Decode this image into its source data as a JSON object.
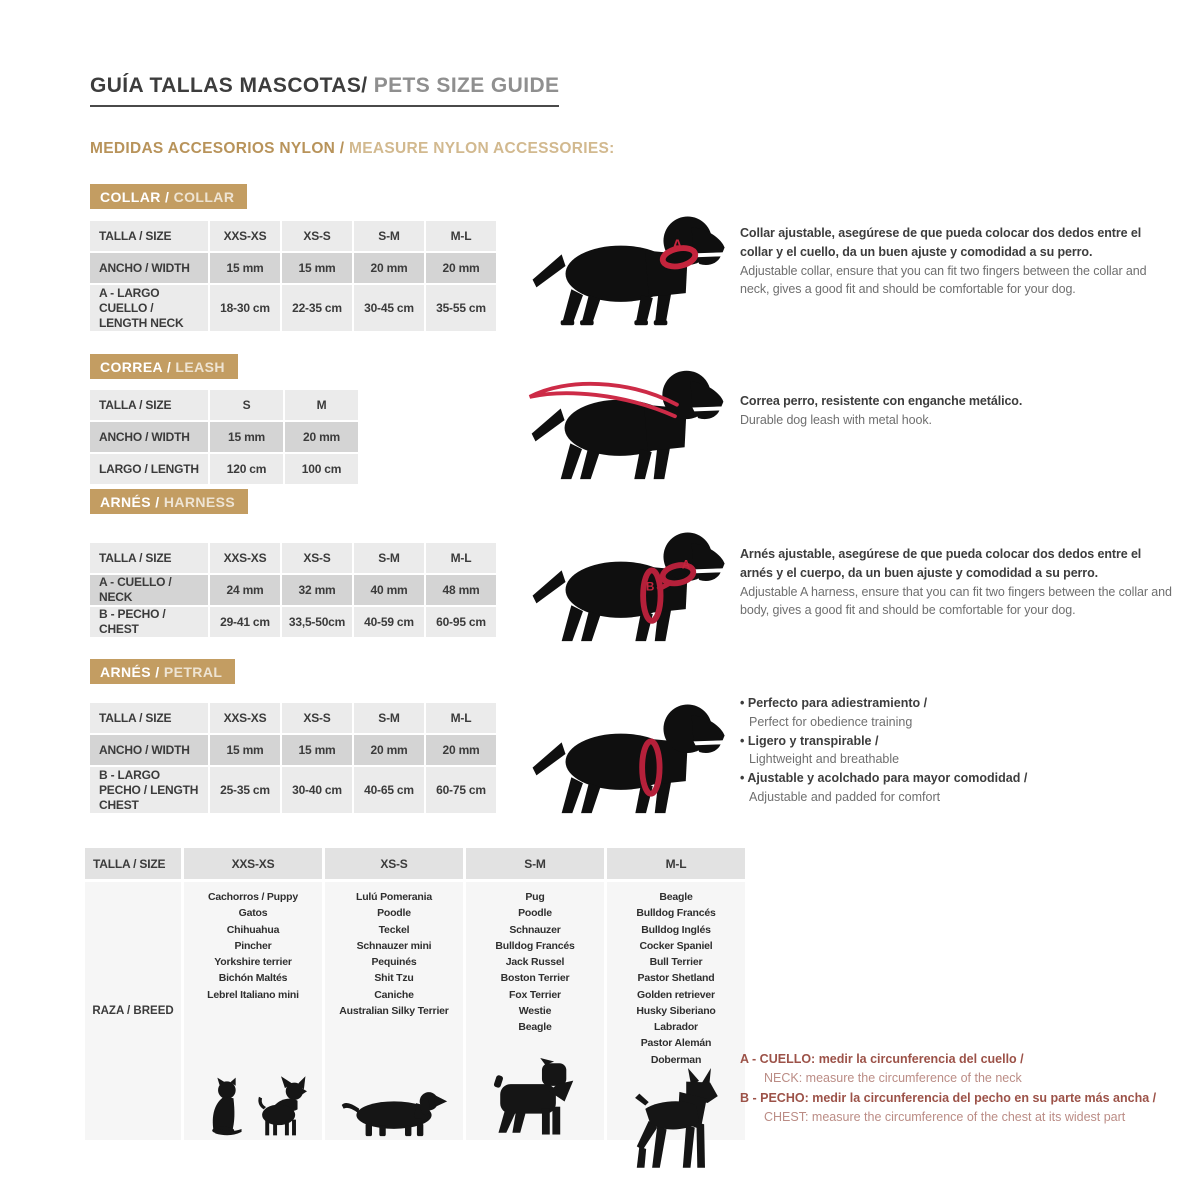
{
  "page": {
    "title_es": "GUÍA TALLAS MASCOTAS/",
    "title_en": " PETS SIZE GUIDE",
    "subtitle_es": "MEDIDAS ACCESORIOS NYLON /",
    "subtitle_en": " MEASURE NYLON ACCESSORIES:"
  },
  "colors": {
    "accent_tan": "#c39d62",
    "row_light": "#ebebeb",
    "row_dark": "#d4d4d4",
    "red_accent": "#c4243c",
    "note_red": "#9c5248"
  },
  "sections": {
    "collar": {
      "badge_es": "COLLAR /",
      "badge_en": " COLLAR",
      "header": [
        "TALLA / SIZE",
        "XXS-XS",
        "XS-S",
        "S-M",
        "M-L"
      ],
      "row1_label": "ANCHO / WIDTH",
      "row1": [
        "15 mm",
        "15 mm",
        "20 mm",
        "20 mm"
      ],
      "row2_label": "A - LARGO CUELLO / LENGTH NECK",
      "row2": [
        "18-30 cm",
        "22-35 cm",
        "30-45 cm",
        "35-55 cm"
      ],
      "desc_es": "Collar ajustable, asegúrese de que pueda colocar dos dedos entre el collar y el cuello, da un buen ajuste y comodidad a su perro.",
      "desc_en": "Adjustable collar, ensure that you can fit two fingers between the collar and neck, gives a good fit and should be comfortable for your dog."
    },
    "correa": {
      "badge_es": "CORREA /",
      "badge_en": " LEASH",
      "header": [
        "TALLA / SIZE",
        "S",
        "M"
      ],
      "row1_label": "ANCHO / WIDTH",
      "row1": [
        "15 mm",
        "20 mm"
      ],
      "row2_label": "LARGO / LENGTH",
      "row2": [
        "120 cm",
        "100 cm"
      ],
      "desc_es": "Correa perro, resistente con enganche metálico.",
      "desc_en": "Durable dog leash with metal hook."
    },
    "harness": {
      "badge_es": "ARNÉS /",
      "badge_en": " HARNESS",
      "header": [
        "TALLA / SIZE",
        "XXS-XS",
        "XS-S",
        "S-M",
        "M-L"
      ],
      "row1_label": "A - CUELLO / NECK",
      "row1": [
        "24 mm",
        "32 mm",
        "40 mm",
        "48 mm"
      ],
      "row2_label": "B - PECHO / CHEST",
      "row2": [
        "29-41 cm",
        "33,5-50cm",
        "40-59 cm",
        "60-95 cm"
      ],
      "desc_es": "Arnés ajustable, asegúrese de que pueda colocar dos dedos entre el arnés y el cuerpo, da un buen ajuste y comodidad a su perro.",
      "desc_en": "Adjustable A harness, ensure that you can fit two fingers between the collar and body, gives a good fit and should be comfortable for your dog."
    },
    "petral": {
      "badge_es": "ARNÉS /",
      "badge_en": " PETRAL",
      "header": [
        "TALLA / SIZE",
        "XXS-XS",
        "XS-S",
        "S-M",
        "M-L"
      ],
      "row1_label": "ANCHO / WIDTH",
      "row1": [
        "15 mm",
        "15 mm",
        "20 mm",
        "20 mm"
      ],
      "row2_label": "B - LARGO PECHO / LENGTH CHEST",
      "row2": [
        "25-35 cm",
        "30-40 cm",
        "40-65 cm",
        "60-75 cm"
      ],
      "bullets": [
        {
          "es": "Perfecto para adiestramiento /",
          "en": "Perfect for obedience training"
        },
        {
          "es": "Ligero y transpirable /",
          "en": "Lightweight and breathable"
        },
        {
          "es": "Ajustable y acolchado para mayor comodidad /",
          "en": "Adjustable and padded for comfort"
        }
      ]
    }
  },
  "breed_table": {
    "header": [
      "TALLA /  SIZE",
      "XXS-XS",
      "XS-S",
      "S-M",
      "M-L"
    ],
    "row_label": "RAZA / BREED",
    "cols": [
      {
        "size": "XXS-XS",
        "breeds": [
          "Cachorros / Puppy",
          "Gatos",
          "Chihuahua",
          "Pincher",
          "Yorkshire terrier",
          "Bichón Maltés",
          "Lebrel Italiano mini"
        ]
      },
      {
        "size": "XS-S",
        "breeds": [
          "Lulú Pomerania",
          "Poodle",
          "Teckel",
          "Schnauzer mini",
          "Pequinés",
          "Shit Tzu",
          "Caniche",
          "Australian Silky Terrier"
        ]
      },
      {
        "size": "S-M",
        "breeds": [
          "Pug",
          "Poodle",
          "Schnauzer",
          "Bulldog Francés",
          "Jack Russel",
          "Boston Terrier",
          "Fox Terrier",
          "Westie",
          "Beagle"
        ]
      },
      {
        "size": "M-L",
        "breeds": [
          "Beagle",
          "Bulldog Francés",
          "Bulldog Inglés",
          "Cocker Spaniel",
          "Bull Terrier",
          "Pastor Shetland",
          "Golden retriever",
          "Husky Siberiano",
          "Labrador",
          "Pastor Alemán",
          "Doberman"
        ]
      }
    ]
  },
  "notes": [
    {
      "bold": "A - CUELLO: medir la circunferencia del cuello /",
      "regular": "NECK: measure the circumference of the neck"
    },
    {
      "bold": "B - PECHO: medir la circunferencia del pecho en su parte más ancha /",
      "regular": "CHEST: measure the circumference of the chest at its widest part"
    }
  ]
}
